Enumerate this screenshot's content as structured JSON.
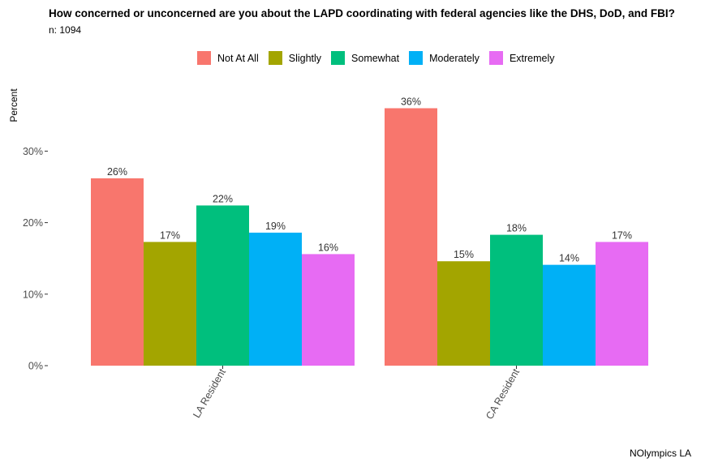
{
  "title": "How concerned or unconcerned are you about the LAPD coordinating with federal agencies like the DHS, DoD, and FBI?",
  "subtitle": "n: 1094",
  "caption": "NOlympics LA",
  "colors": {
    "Not At All": "#F8766D",
    "Slightly": "#A3A500",
    "Somewhat": "#00BF7D",
    "Moderately": "#00B0F6",
    "Extremely": "#E76BF3"
  },
  "chart_data": {
    "type": "bar",
    "title": "How concerned or unconcerned are you about the LAPD coordinating with federal agencies like the DHS, DoD, and FBI?",
    "subtitle": "n: 1094",
    "xlabel": "",
    "ylabel": "Percent",
    "ylim": [
      0,
      0.36
    ],
    "yticks": [
      0,
      0.1,
      0.2,
      0.3
    ],
    "ytick_labels": [
      "0%",
      "10%",
      "20%",
      "30%"
    ],
    "grid": false,
    "legend_position": "top",
    "categories": [
      "LA Resident",
      "CA Resident"
    ],
    "series": [
      {
        "name": "Not At All",
        "values": [
          0.262,
          0.36
        ],
        "labels": [
          "26%",
          "36%"
        ]
      },
      {
        "name": "Slightly",
        "values": [
          0.173,
          0.146
        ],
        "labels": [
          "17%",
          "15%"
        ]
      },
      {
        "name": "Somewhat",
        "values": [
          0.224,
          0.183
        ],
        "labels": [
          "22%",
          "18%"
        ]
      },
      {
        "name": "Moderately",
        "values": [
          0.186,
          0.141
        ],
        "labels": [
          "19%",
          "14%"
        ]
      },
      {
        "name": "Extremely",
        "values": [
          0.156,
          0.173
        ],
        "labels": [
          "16%",
          "17%"
        ]
      }
    ]
  }
}
